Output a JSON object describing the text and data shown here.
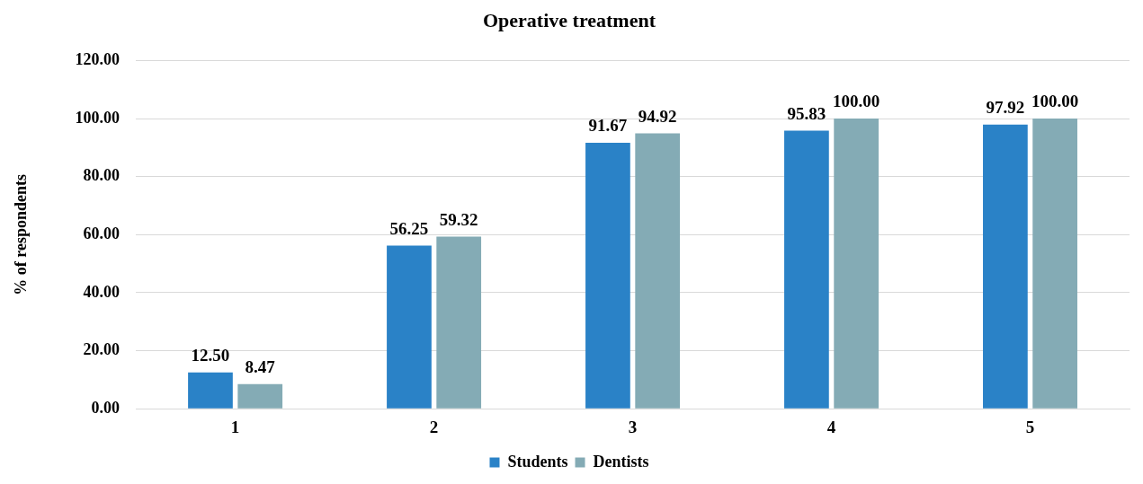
{
  "chart_data": {
    "type": "bar",
    "title": "Operative treatment",
    "ylabel": "% of respondents",
    "categories": [
      "1",
      "2",
      "3",
      "4",
      "5"
    ],
    "series": [
      {
        "name": "Students",
        "color": "#2a82c7",
        "values": [
          12.5,
          56.25,
          91.67,
          95.83,
          97.92
        ],
        "value_labels": [
          "12.50",
          "56.25",
          "91.67",
          "95.83",
          "97.92"
        ]
      },
      {
        "name": "Dentists",
        "color": "#84abb5",
        "values": [
          8.47,
          59.32,
          94.92,
          100,
          100
        ],
        "value_labels": [
          "8.47",
          "59.32",
          "94.92",
          "100.00",
          "100.00"
        ]
      }
    ],
    "ylim": [
      0,
      120
    ],
    "yticks": [
      {
        "value": 0,
        "label": "0.00"
      },
      {
        "value": 20,
        "label": "20.00"
      },
      {
        "value": 40,
        "label": "40.00"
      },
      {
        "value": 60,
        "label": "60.00"
      },
      {
        "value": 80,
        "label": "80.00"
      },
      {
        "value": 100,
        "label": "100.00"
      },
      {
        "value": 120,
        "label": "120.00"
      }
    ],
    "grid": "y",
    "legend": "bottom"
  }
}
